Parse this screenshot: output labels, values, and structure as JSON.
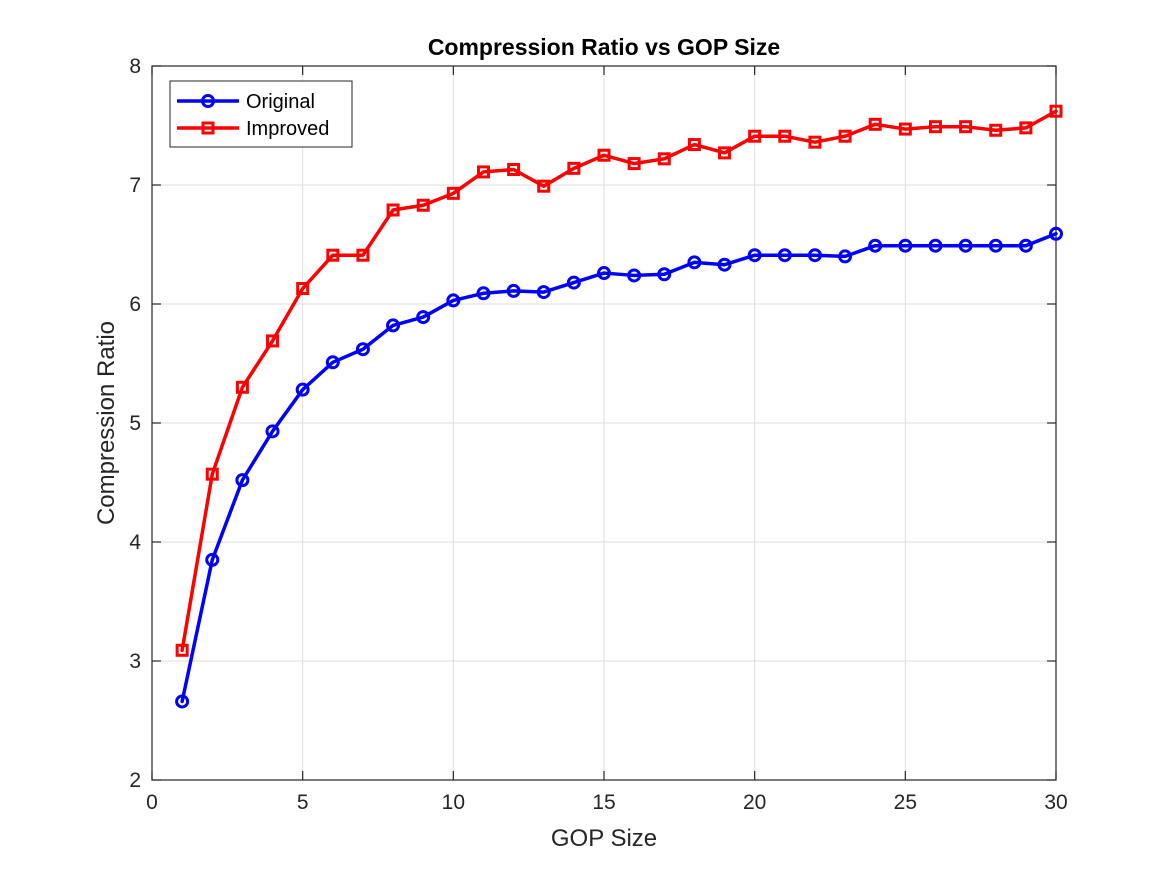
{
  "chart_data": {
    "type": "line",
    "title": "Compression Ratio vs GOP Size",
    "xlabel": "GOP Size",
    "ylabel": "Compression Ratio",
    "xlim": [
      0,
      30
    ],
    "ylim": [
      2,
      8
    ],
    "xticks": [
      0,
      5,
      10,
      15,
      20,
      25,
      30
    ],
    "yticks": [
      2,
      3,
      4,
      5,
      6,
      7,
      8
    ],
    "grid": true,
    "legend_position": "top-left",
    "x": [
      1,
      2,
      3,
      4,
      5,
      6,
      7,
      8,
      9,
      10,
      11,
      12,
      13,
      14,
      15,
      16,
      17,
      18,
      19,
      20,
      21,
      22,
      23,
      24,
      25,
      26,
      27,
      28,
      29,
      30
    ],
    "series": [
      {
        "name": "Original",
        "color": "#0000ff",
        "marker": "circle",
        "values": [
          2.66,
          3.85,
          4.52,
          4.93,
          5.28,
          5.51,
          5.62,
          5.82,
          5.89,
          6.03,
          6.09,
          6.11,
          6.1,
          6.18,
          6.26,
          6.24,
          6.25,
          6.35,
          6.33,
          6.41,
          6.41,
          6.41,
          6.4,
          6.49,
          6.49,
          6.49,
          6.49,
          6.49,
          6.49,
          6.59
        ]
      },
      {
        "name": "Improved",
        "color": "#ff0000",
        "marker": "square",
        "values": [
          3.09,
          4.57,
          5.3,
          5.69,
          6.13,
          6.41,
          6.41,
          6.79,
          6.83,
          6.93,
          7.11,
          7.13,
          6.99,
          7.14,
          7.25,
          7.18,
          7.22,
          7.34,
          7.27,
          7.41,
          7.41,
          7.36,
          7.41,
          7.51,
          7.47,
          7.49,
          7.49,
          7.46,
          7.48,
          7.62
        ]
      }
    ]
  }
}
